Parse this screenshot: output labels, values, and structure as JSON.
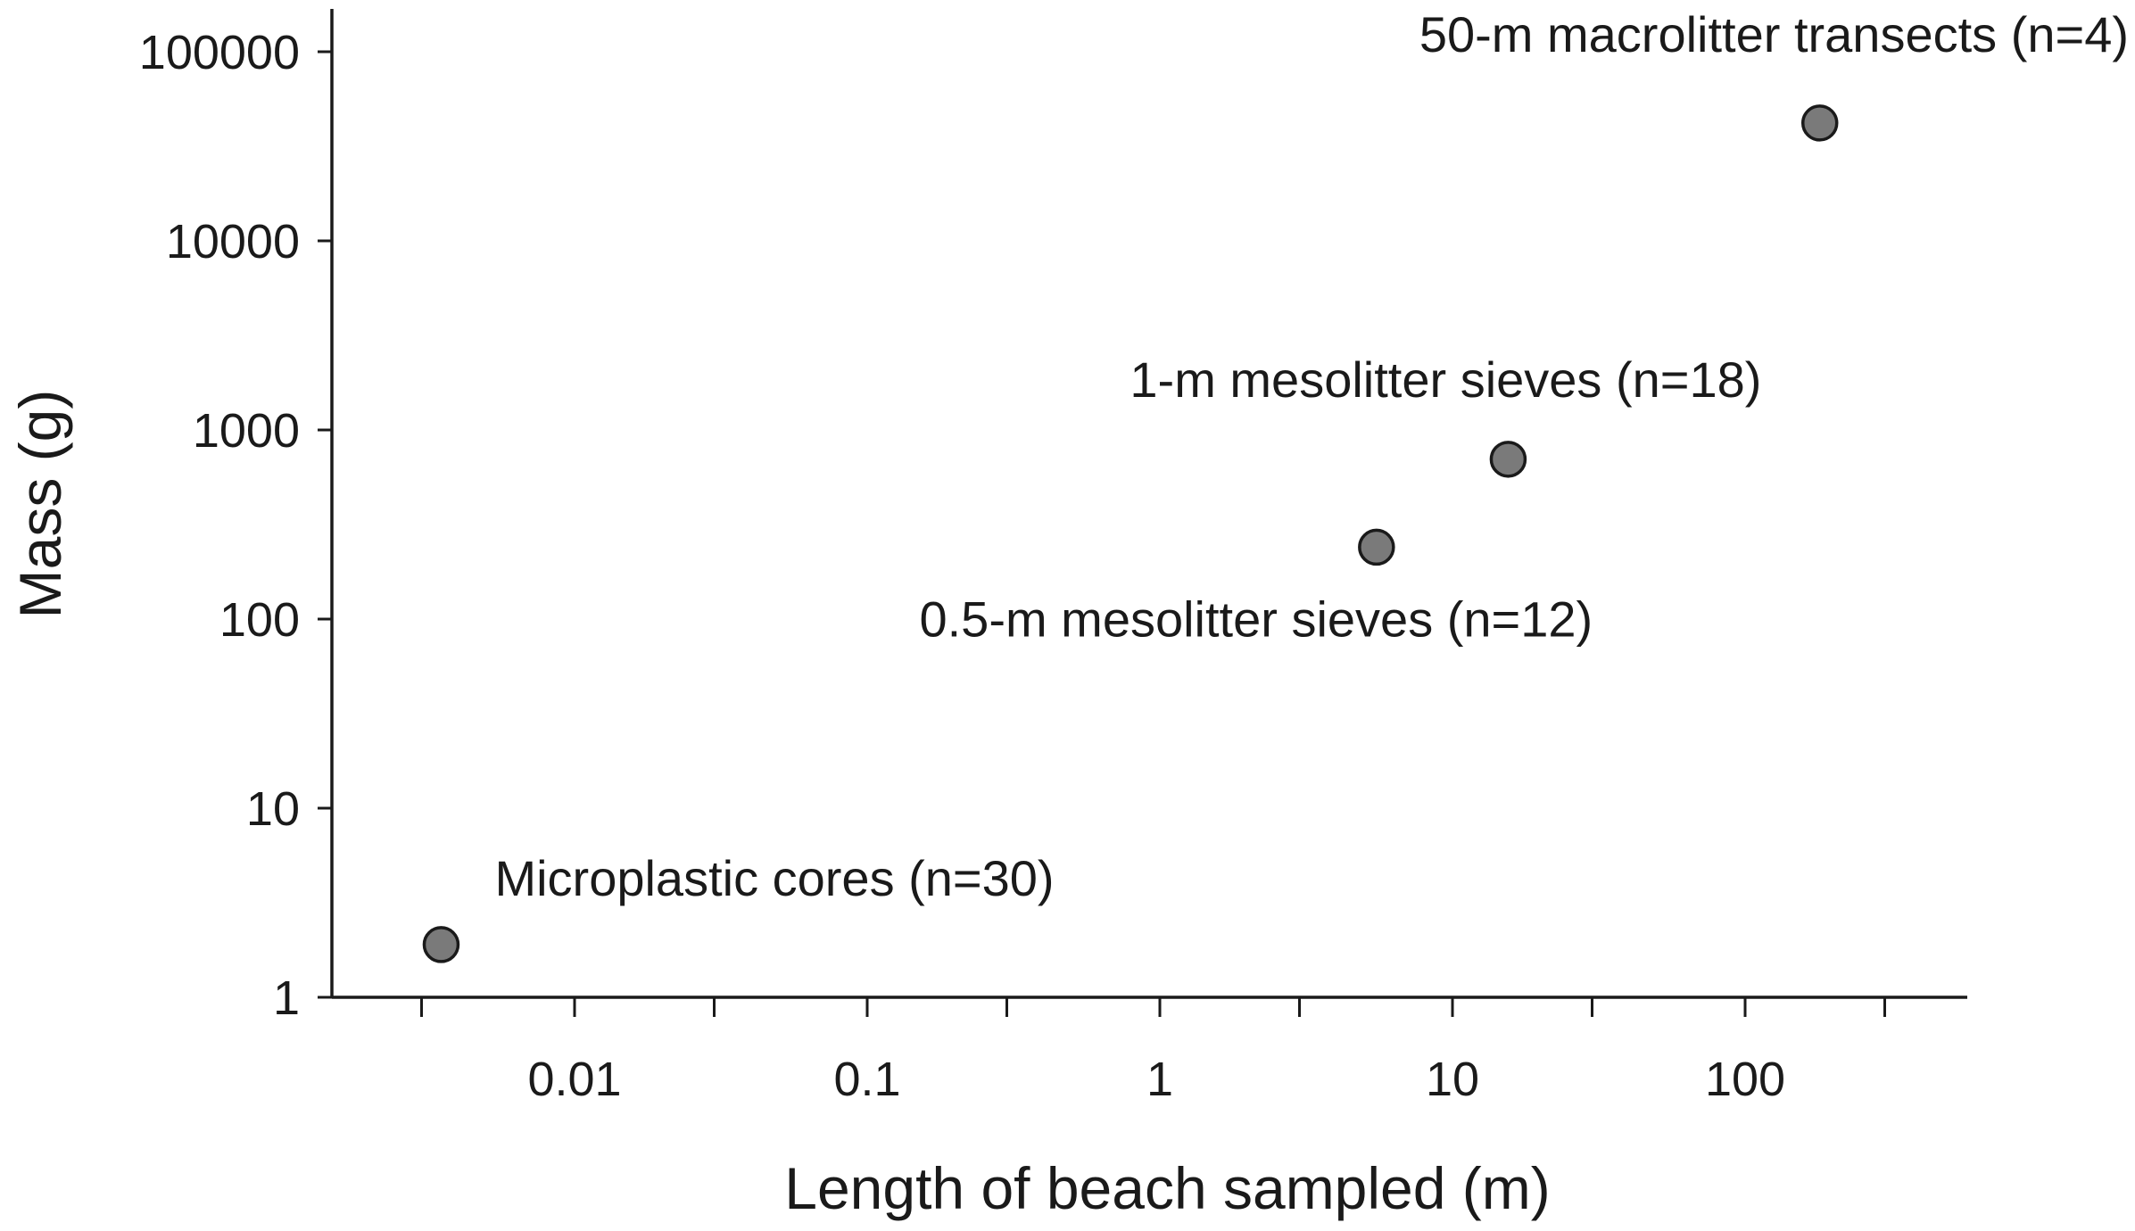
{
  "chart_data": {
    "type": "scatter",
    "title": "",
    "xlabel": "Length of beach sampled (m)",
    "ylabel": "Mass (g)",
    "x_scale": "log",
    "y_scale": "log",
    "xlim": [
      0.001,
      500
    ],
    "ylim": [
      1,
      150000
    ],
    "x_ticks": [
      {
        "value": 0.003,
        "label": ""
      },
      {
        "value": 0.01,
        "label": "0.01"
      },
      {
        "value": 0.03,
        "label": ""
      },
      {
        "value": 0.1,
        "label": "0.1"
      },
      {
        "value": 0.3,
        "label": ""
      },
      {
        "value": 1,
        "label": "1"
      },
      {
        "value": 3,
        "label": ""
      },
      {
        "value": 10,
        "label": "10"
      },
      {
        "value": 30,
        "label": ""
      },
      {
        "value": 100,
        "label": "100"
      },
      {
        "value": 300,
        "label": ""
      }
    ],
    "y_ticks": [
      {
        "value": 1,
        "label": "1"
      },
      {
        "value": 10,
        "label": "10"
      },
      {
        "value": 100,
        "label": "100"
      },
      {
        "value": 1000,
        "label": "1000"
      },
      {
        "value": 10000,
        "label": "10000"
      },
      {
        "value": 100000,
        "label": "100000"
      }
    ],
    "grid": false,
    "points": [
      {
        "x": 0.0035,
        "y": 1.9,
        "label": "Microplastic cores (n=30)",
        "label_anchor": "upper-right"
      },
      {
        "x": 5.5,
        "y": 240,
        "label": "0.5-m mesolitter sieves (n=12)",
        "label_anchor": "below-left"
      },
      {
        "x": 15.5,
        "y": 700,
        "label": "1-m mesolitter sieves (n=18)",
        "label_anchor": "above"
      },
      {
        "x": 180,
        "y": 42000,
        "label": "50-m macrolitter transects (n=4)",
        "label_anchor": "above"
      }
    ],
    "colors": {
      "marker_fill": "#7a7a7a",
      "marker_edge": "#1a1a1a",
      "axis": "#1a1a1a"
    }
  }
}
